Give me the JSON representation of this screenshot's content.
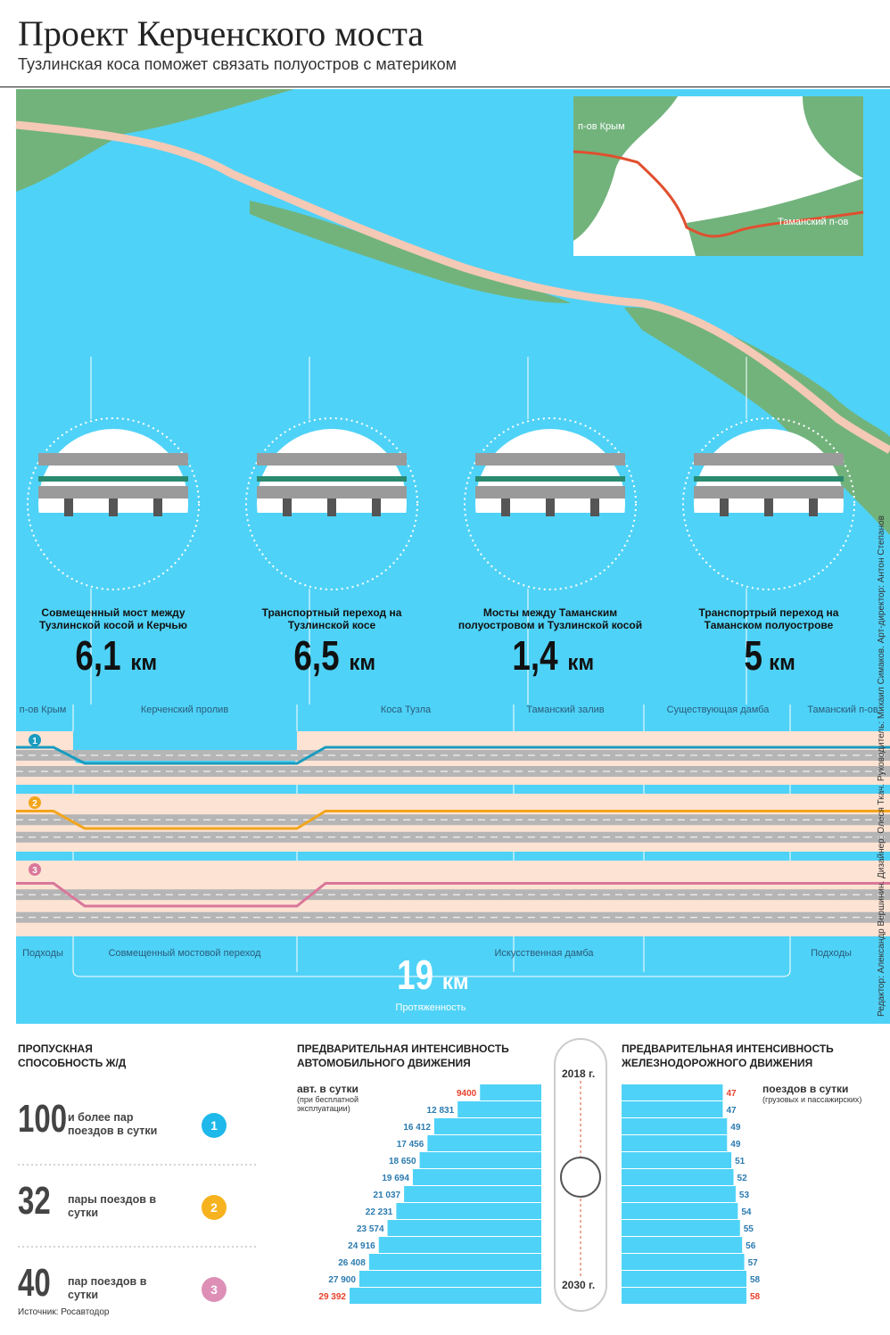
{
  "header": {
    "title": "Проект Керченского моста",
    "subtitle": "Тузлинская коса поможет связать полуостров с материком"
  },
  "map": {
    "labels": [
      "п-ов Крым",
      "Таманский п-ов"
    ]
  },
  "unit": "км",
  "sections": [
    {
      "title": "Совмещенный мост между Тузлинской косой и Керчью",
      "length": {
        "value": 6.1,
        "label": "6,1"
      }
    },
    {
      "title": "Транспортный переход на Тузлинской косе",
      "length": {
        "value": 6.5,
        "label": "6,5"
      }
    },
    {
      "title": "Мосты между Таманским полуостровом и Тузлинской косой",
      "length": {
        "value": 1.4,
        "label": "1,4"
      }
    },
    {
      "title": "Транспортрый переход на Таманском полуострове",
      "length": 5
    }
  ],
  "profile": {
    "zones": [
      "п-ов Крым",
      "Керченский пролив",
      "Коса Тузла",
      "Таманский залив",
      "Существующая дамба",
      "Таманский п-ов"
    ],
    "segments": [
      "Подходы",
      "Совмещенный мостовой переход",
      "Искусственная дамба",
      "Подходы"
    ],
    "lines": [
      "1",
      "2",
      "3"
    ],
    "total": 19,
    "total_label": "Протяженность"
  },
  "capacity": {
    "title": "Пропускная способность Ж/Д",
    "items": [
      {
        "number": 100,
        "text": "и более пар поездов в сутки"
      },
      {
        "number": 32,
        "text": "пары поездов в сутки"
      },
      {
        "number": 40,
        "text": "пар поездов в сутки"
      }
    ]
  },
  "auto": {
    "title": "Предварительная интенсивность автомобильного движения",
    "unit": "авт. в сутки",
    "note": "(при бесплатной эксплуатации)",
    "values": [
      9400,
      12831,
      16412,
      17456,
      18650,
      19694,
      21037,
      22231,
      23574,
      24916,
      26408,
      27900,
      29392
    ],
    "value_labels": [
      "9400",
      "12 831",
      "16 412",
      "17 456",
      "18 650",
      "19 694",
      "21 037",
      "22 231",
      "23 574",
      "24 916",
      "26 408",
      "27 900",
      "29 392"
    ]
  },
  "timeline": {
    "start": "2018 г.",
    "end": "2030 г."
  },
  "rail": {
    "title": "Предварительная интенсивность железнодорожного движения",
    "unit": "поездов в сутки",
    "note": "(грузовых и пассажирских)",
    "values": [
      47,
      47,
      49,
      49,
      51,
      52,
      53,
      54,
      55,
      56,
      57,
      58,
      58
    ]
  },
  "source": "Источник: Росавтодор",
  "credits": "Редактор: Александр Вершинин. Дизайнер: Олеся Ткач. Руководитель: Михаил Симаков. Арт-директор: Антон Степанов"
}
